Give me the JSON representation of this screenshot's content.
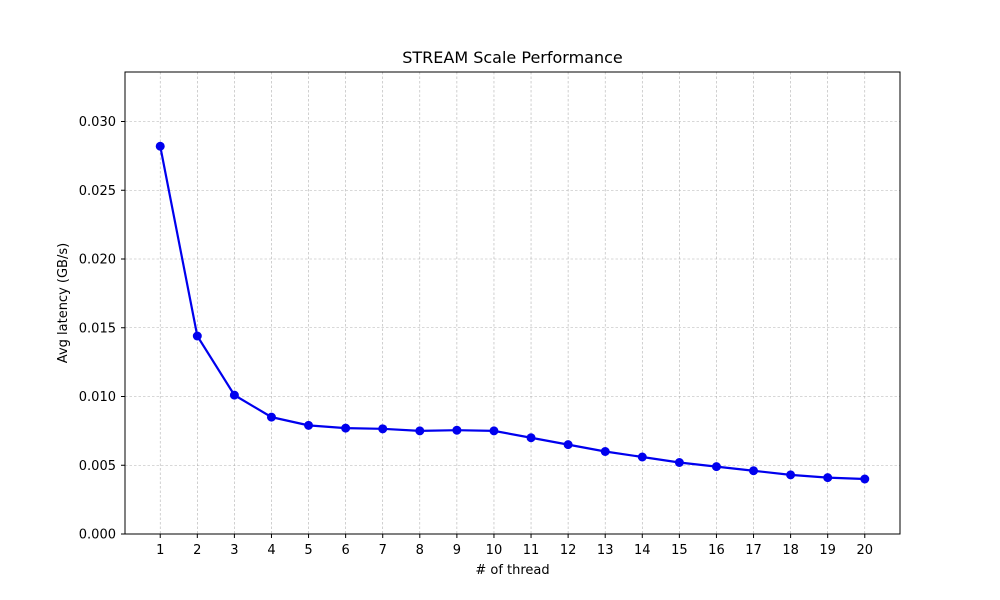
{
  "chart_data": {
    "type": "line",
    "title": "STREAM Scale Performance",
    "xlabel": "# of thread",
    "ylabel": "Avg latency (GB/s)",
    "x": [
      1,
      2,
      3,
      4,
      5,
      6,
      7,
      8,
      9,
      10,
      11,
      12,
      13,
      14,
      15,
      16,
      17,
      18,
      19,
      20
    ],
    "x_tick_labels": [
      "1",
      "2",
      "3",
      "4",
      "5",
      "6",
      "7",
      "8",
      "9",
      "10",
      "11",
      "12",
      "13",
      "14",
      "15",
      "16",
      "17",
      "18",
      "19",
      "20"
    ],
    "xlim": [
      0.05,
      20.95
    ],
    "ylim": [
      0,
      0.0336
    ],
    "y_ticks": [
      0.0,
      0.005,
      0.01,
      0.015,
      0.02,
      0.025,
      0.03
    ],
    "y_tick_labels": [
      "0.000",
      "0.005",
      "0.010",
      "0.015",
      "0.020",
      "0.025",
      "0.030"
    ],
    "grid": true,
    "series": [
      {
        "color": "#0000ee",
        "marker": "circle",
        "values": [
          0.0282,
          0.0144,
          0.0101,
          0.0085,
          0.0079,
          0.0077,
          0.00765,
          0.0075,
          0.00755,
          0.0075,
          0.007,
          0.0065,
          0.006,
          0.0056,
          0.0052,
          0.0049,
          0.0046,
          0.0043,
          0.0041,
          0.004
        ]
      }
    ]
  }
}
